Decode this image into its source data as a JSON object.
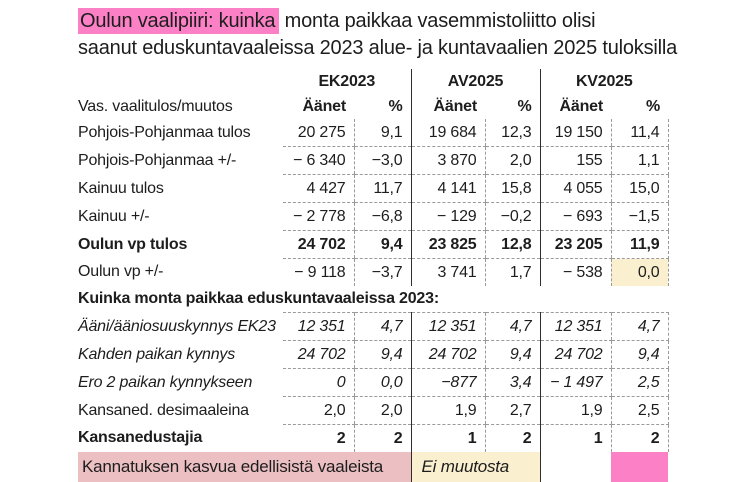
{
  "title": {
    "highlight_text": "Oulun vaalipiiri: kuinka",
    "line1_rest": " monta paikkaa vasemmistoliitto olisi",
    "line2": "saanut eduskuntavaaleissa 2023 alue- ja kuntavaalien 2025 tuloksilla"
  },
  "colors": {
    "highlight_pink": "#fb80c5",
    "band_rose": "#ecbfc3",
    "cell_cream": "#faf0cf",
    "line_dark": "#2e2e2e",
    "dash_gray": "#9a9a9a"
  },
  "table": {
    "label_header": "Vas. vaalitulos/muutos",
    "group_headers": [
      "EK2023",
      "AV2025",
      "KV2025"
    ],
    "sub_headers": [
      "Äänet",
      "%",
      "Äänet",
      "%",
      "Äänet",
      "%"
    ],
    "rows": [
      {
        "label": "Pohjois-Pohjanmaa tulos",
        "cells": [
          "20 275",
          "9,1",
          "19 684",
          "12,3",
          "19 150",
          "11,4"
        ],
        "sep": true
      },
      {
        "label": "Pohjois-Pohjanmaa +/-",
        "cells": [
          "− 6 340",
          "−3,0",
          "3 870",
          "2,0",
          "155",
          "1,1"
        ],
        "sep": true
      },
      {
        "label": "Kainuu tulos",
        "cells": [
          "4 427",
          "11,7",
          "4 141",
          "15,8",
          "4 055",
          "15,0"
        ],
        "sep": true
      },
      {
        "label": "Kainuu +/-",
        "cells": [
          "− 2 778",
          "−6,8",
          "− 129",
          "−0,2",
          "− 693",
          "−1,5"
        ],
        "sep": true
      },
      {
        "label": "Oulun vp tulos",
        "cells": [
          "24 702",
          "9,4",
          "23 825",
          "12,8",
          "23 205",
          "11,9"
        ],
        "bold": true,
        "sep": true
      },
      {
        "label": "Oulun vp +/-",
        "cells": [
          "− 9 118",
          "−3,7",
          "3 741",
          "1,7",
          "− 538",
          "0,0"
        ],
        "highlight_last": true
      },
      {
        "type": "section",
        "text": "Kuinka monta paikkaa eduskuntavaaleissa 2023:"
      },
      {
        "label": "Ääni/ääniosuuskynnys EK23",
        "cells": [
          "12 351",
          "4,7",
          "12 351",
          "4,7",
          "12 351",
          "4,7"
        ],
        "italic": true,
        "sep_top": true,
        "sep": true
      },
      {
        "label": "Kahden paikan kynnys",
        "cells": [
          "24 702",
          "9,4",
          "24 702",
          "9,4",
          "24 702",
          "9,4"
        ],
        "italic": true,
        "sep": true
      },
      {
        "label": "Ero 2 paikan kynnykseen",
        "cells": [
          "0",
          "0,0",
          "−877",
          "3,4",
          "− 1 497",
          "2,5"
        ],
        "italic": true,
        "sep": true
      },
      {
        "label": "Kansaned. desimaaleina",
        "cells": [
          "2,0",
          "2,0",
          "1,9",
          "2,7",
          "1,9",
          "2,5"
        ],
        "sep": true
      },
      {
        "label": "Kansanedustajia",
        "cells": [
          "2",
          "2",
          "1",
          "2",
          "1",
          "2"
        ],
        "bold": true
      }
    ]
  },
  "footer_band": {
    "label": "Kannatuksen kasvua edellisistä vaaleista",
    "av_note": "Ei muutosta",
    "kv_note": ""
  }
}
